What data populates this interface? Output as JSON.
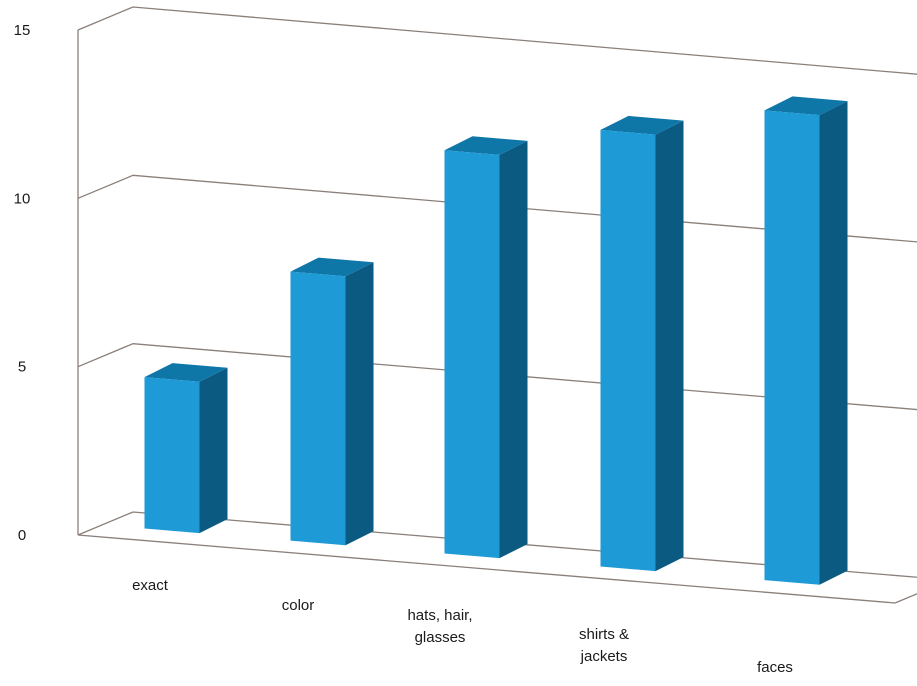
{
  "chart_data": {
    "type": "bar",
    "categories": [
      "exact",
      "color",
      "hats, hair, glasses",
      "shirts & jackets",
      "faces"
    ],
    "category_label_lines": [
      [
        "exact"
      ],
      [
        "color"
      ],
      [
        "hats, hair,",
        "glasses"
      ],
      [
        "shirts &",
        "jackets"
      ],
      [
        "faces"
      ]
    ],
    "values": [
      4.5,
      8.0,
      12.0,
      13.0,
      14.0
    ],
    "ylim": [
      0,
      15
    ],
    "yticks": [
      "0",
      "5",
      "10",
      "15"
    ],
    "title": "",
    "xlabel": "",
    "ylabel": "",
    "grid": true,
    "legend": "none",
    "style": "3d-column",
    "colors": {
      "bar_front": "#1e9ad6",
      "bar_top": "#0f76a8",
      "bar_side": "#0a5a82",
      "grid": "#8a7f79"
    }
  }
}
